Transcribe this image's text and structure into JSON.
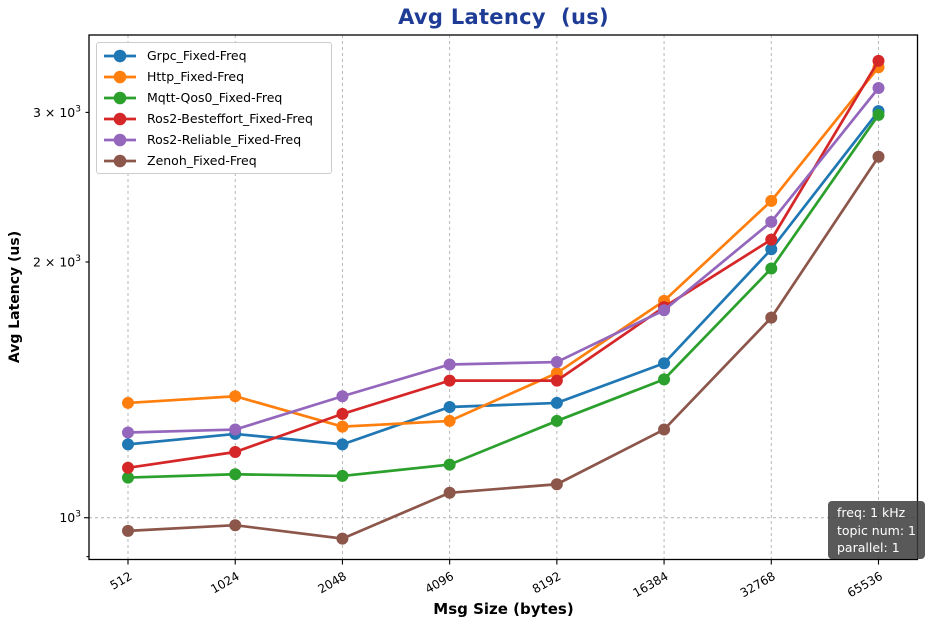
{
  "title": "Avg Latency  (us)",
  "styles": {
    "title_color": "#1e3c96",
    "grid_color": "#b0b0b0",
    "axis_color": "#000000",
    "tick_label_color": "#000000",
    "legend_border_color": "#cccccc",
    "annotation_bg": "#3c3c3c",
    "annotation_bg_opacity": 0.85,
    "annotation_text_color": "#ffffff"
  },
  "chart_data": {
    "type": "line",
    "title": "Avg Latency  (us)",
    "xlabel": "Msg Size (bytes)",
    "ylabel": "Avg Latency (us)",
    "x_scale": "log2-categorical",
    "y_scale": "log10",
    "categories": [
      "512",
      "1024",
      "2048",
      "4096",
      "8192",
      "16384",
      "32768",
      "65536"
    ],
    "ylim": [
      893,
      3700
    ],
    "y_ticks": [
      {
        "value": 1000,
        "label_prefix": "10",
        "label_sup": "3",
        "kind": "major"
      },
      {
        "value": 2000,
        "label_prefix": "2 × 10",
        "label_sup": "3",
        "kind": "minor-labeled"
      },
      {
        "value": 3000,
        "label_prefix": "3 × 10",
        "label_sup": "3",
        "kind": "minor-labeled"
      },
      {
        "value": 900,
        "label_prefix": "",
        "label_sup": "",
        "kind": "minor"
      }
    ],
    "grid": {
      "vertical_at_all_categories": true,
      "horizontal_at_values": [
        1000
      ],
      "style": "dashed"
    },
    "legend_position": "upper-left",
    "series": [
      {
        "name": "Grpc_Fixed-Freq",
        "color": "#1f77b4",
        "values": [
          1220,
          1255,
          1220,
          1350,
          1365,
          1520,
          2070,
          3010
        ]
      },
      {
        "name": "Http_Fixed-Freq",
        "color": "#ff7f0e",
        "values": [
          1365,
          1390,
          1280,
          1300,
          1480,
          1800,
          2360,
          3390
        ]
      },
      {
        "name": "Mqtt-Qos0_Fixed-Freq",
        "color": "#2ca02c",
        "values": [
          1115,
          1125,
          1120,
          1155,
          1300,
          1455,
          1965,
          2980
        ]
      },
      {
        "name": "Ros2-Besteffort_Fixed-Freq",
        "color": "#d62728",
        "values": [
          1145,
          1195,
          1325,
          1450,
          1450,
          1770,
          2125,
          3450
        ]
      },
      {
        "name": "Ros2-Reliable_Fixed-Freq",
        "color": "#9467bd",
        "values": [
          1260,
          1270,
          1390,
          1515,
          1525,
          1755,
          2230,
          3205
        ]
      },
      {
        "name": "Zenoh_Fixed-Freq",
        "color": "#8c564b",
        "values": [
          965,
          980,
          945,
          1070,
          1095,
          1270,
          1720,
          2660
        ]
      }
    ],
    "annotation": {
      "lines": [
        "freq: 1 kHz",
        "topic num: 1",
        "parallel: 1"
      ]
    }
  }
}
